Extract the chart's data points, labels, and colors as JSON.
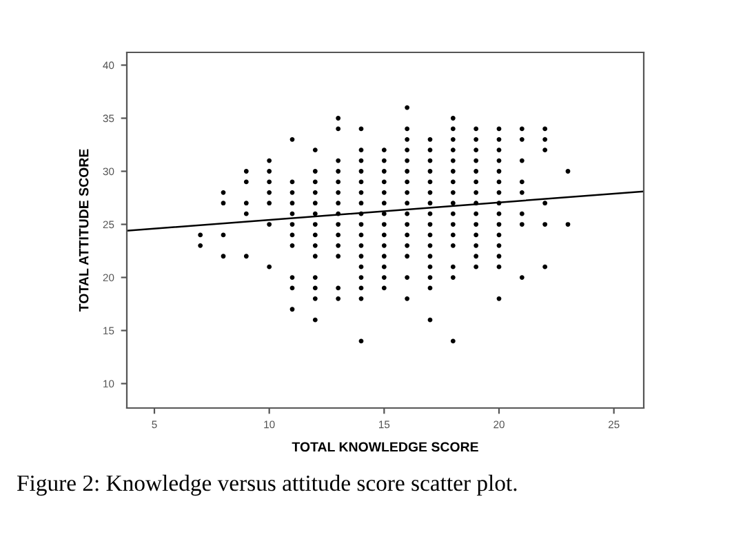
{
  "chart_data": {
    "type": "scatter",
    "xlabel": "TOTAL KNOWLEDGE SCORE",
    "ylabel": "TOTAL ATTITUDE SCORE",
    "annotations": [
      "Figure 2: Knowledge versus attitude score scatter plot."
    ],
    "xlim": [
      3.8,
      26.3
    ],
    "ylim": [
      7.7,
      41.2
    ],
    "xticks": [
      5,
      10,
      15,
      20,
      25
    ],
    "yticks": [
      10,
      15,
      20,
      25,
      30,
      35,
      40
    ],
    "grid": false,
    "legend": false,
    "marker": "circle",
    "series": [
      {
        "color": "#000000",
        "x": [
          7,
          7,
          8,
          8,
          8,
          8,
          9,
          9,
          9,
          9,
          9,
          10,
          10,
          10,
          10,
          10,
          10,
          10,
          11,
          11,
          11,
          11,
          11,
          11,
          11,
          11,
          11,
          11,
          11,
          12,
          12,
          12,
          12,
          12,
          12,
          12,
          12,
          12,
          12,
          12,
          12,
          12,
          12,
          13,
          13,
          13,
          13,
          13,
          13,
          13,
          13,
          13,
          13,
          13,
          13,
          13,
          13,
          14,
          14,
          14,
          14,
          14,
          14,
          14,
          14,
          14,
          14,
          14,
          14,
          14,
          14,
          14,
          14,
          14,
          15,
          15,
          15,
          15,
          15,
          15,
          15,
          15,
          15,
          15,
          15,
          15,
          15,
          15,
          16,
          16,
          16,
          16,
          16,
          16,
          16,
          16,
          16,
          16,
          16,
          16,
          16,
          16,
          16,
          16,
          17,
          17,
          17,
          17,
          17,
          17,
          17,
          17,
          17,
          17,
          17,
          17,
          17,
          17,
          17,
          17,
          18,
          18,
          18,
          18,
          18,
          18,
          18,
          18,
          18,
          18,
          18,
          18,
          18,
          18,
          18,
          18,
          19,
          19,
          19,
          19,
          19,
          19,
          19,
          19,
          19,
          19,
          19,
          19,
          19,
          19,
          20,
          20,
          20,
          20,
          20,
          20,
          20,
          20,
          20,
          20,
          20,
          20,
          20,
          20,
          20,
          21,
          21,
          21,
          21,
          21,
          21,
          21,
          21,
          22,
          22,
          22,
          22,
          22,
          22,
          23,
          23
        ],
        "values": [
          24,
          23,
          28,
          27,
          24,
          22,
          30,
          29,
          27,
          26,
          22,
          31,
          30,
          29,
          28,
          27,
          25,
          21,
          33,
          29,
          28,
          27,
          26,
          25,
          24,
          23,
          20,
          19,
          17,
          32,
          30,
          29,
          28,
          27,
          26,
          25,
          24,
          23,
          22,
          20,
          19,
          18,
          16,
          35,
          34,
          31,
          30,
          29,
          28,
          27,
          26,
          25,
          24,
          23,
          22,
          19,
          18,
          34,
          32,
          31,
          30,
          29,
          28,
          27,
          26,
          25,
          24,
          23,
          22,
          21,
          20,
          19,
          18,
          14,
          32,
          31,
          30,
          29,
          28,
          27,
          26,
          25,
          24,
          23,
          22,
          21,
          20,
          19,
          36,
          34,
          33,
          32,
          31,
          30,
          29,
          28,
          27,
          26,
          25,
          24,
          23,
          22,
          20,
          18,
          33,
          32,
          31,
          30,
          29,
          28,
          27,
          26,
          25,
          24,
          23,
          22,
          21,
          20,
          19,
          16,
          35,
          34,
          33,
          32,
          31,
          30,
          29,
          28,
          27,
          26,
          25,
          24,
          23,
          21,
          20,
          14,
          34,
          33,
          32,
          31,
          30,
          29,
          28,
          27,
          26,
          25,
          24,
          23,
          22,
          21,
          34,
          33,
          32,
          31,
          30,
          29,
          28,
          27,
          26,
          25,
          24,
          23,
          22,
          21,
          18,
          34,
          33,
          31,
          29,
          28,
          26,
          25,
          20,
          34,
          33,
          32,
          27,
          25,
          21,
          30,
          25
        ]
      },
      {
        "type": "line",
        "color": "#000000",
        "marker": "none",
        "x": [
          3.8,
          26.3
        ],
        "values": [
          24.4,
          28.1
        ]
      }
    ]
  }
}
